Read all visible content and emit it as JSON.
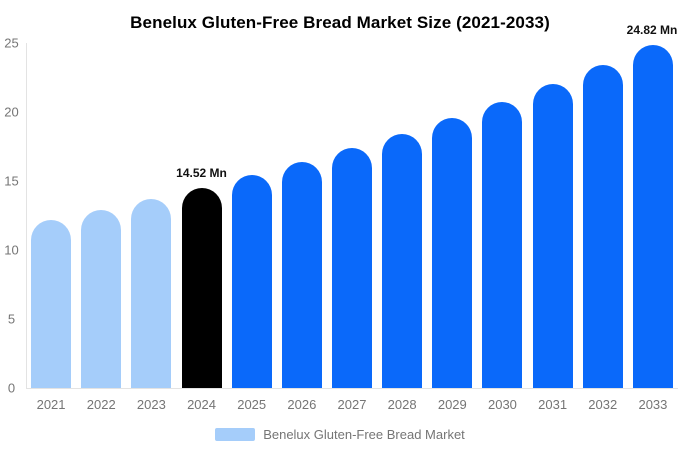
{
  "chart_data": {
    "type": "bar",
    "title": "Benelux Gluten-Free Bread Market Size (2021-2033)",
    "categories": [
      "2021",
      "2022",
      "2023",
      "2024",
      "2025",
      "2026",
      "2027",
      "2028",
      "2029",
      "2030",
      "2031",
      "2032",
      "2033"
    ],
    "values": [
      12.14,
      12.89,
      13.68,
      14.52,
      15.41,
      16.36,
      17.36,
      18.43,
      19.56,
      20.76,
      22.03,
      23.39,
      24.82
    ],
    "unit": "Mn",
    "colors": [
      "#a5cdfa",
      "#a5cdfa",
      "#a5cdfa",
      "#000000",
      "#0a69fa",
      "#0a69fa",
      "#0a69fa",
      "#0a69fa",
      "#0a69fa",
      "#0a69fa",
      "#0a69fa",
      "#0a69fa",
      "#0a69fa"
    ],
    "annotations": [
      {
        "index": 3,
        "text": "14.52 Mn"
      },
      {
        "index": 12,
        "text": "24.82 Mn"
      }
    ],
    "y_ticks": [
      0,
      5,
      10,
      15,
      20,
      25
    ],
    "ylim": [
      0,
      25
    ],
    "xlabel": "",
    "ylabel": "",
    "grid": false,
    "legend_position": "bottom",
    "legend": {
      "label": "Benelux Gluten-Free Bread Market",
      "swatch_color": "#a5cdfa"
    },
    "palette": {
      "historical_blue_light": "#a5cdfa",
      "base_year_black": "#000000",
      "forecast_blue": "#0a69fa",
      "axis_line": "#e3e3e3",
      "label_gray": "#757575",
      "title_black": "#000000",
      "annotation_dark": "#111111"
    }
  }
}
